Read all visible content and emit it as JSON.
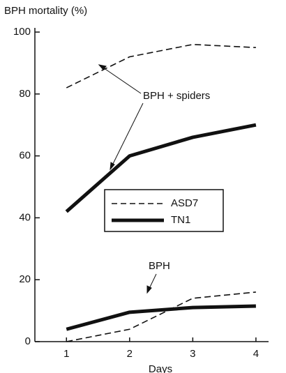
{
  "chart_data": {
    "type": "line",
    "ylabel": "BPH mortality (%)",
    "xlabel": "Days",
    "x": [
      1,
      2,
      3,
      4
    ],
    "xlim": [
      0.5,
      4.2
    ],
    "xticks": [
      1,
      2,
      3,
      4
    ],
    "ylim": [
      0,
      100
    ],
    "yticks": [
      0,
      20,
      40,
      60,
      80,
      100
    ],
    "series": [
      {
        "name": "ASD7",
        "color": "#111111",
        "style": "dashed",
        "values": [
          82,
          92,
          96,
          95
        ]
      },
      {
        "name": "TN1",
        "color": "#111111",
        "style": "solid",
        "values": [
          42,
          60,
          66,
          70
        ]
      },
      {
        "name": "ASD7",
        "color": "#111111",
        "style": "dashed",
        "values": [
          0,
          4,
          14,
          16
        ]
      },
      {
        "name": "TN1",
        "color": "#111111",
        "style": "solid",
        "values": [
          4,
          9.5,
          11,
          11.5
        ]
      }
    ],
    "annotations": [
      "BPH + spiders",
      "BPH"
    ]
  }
}
